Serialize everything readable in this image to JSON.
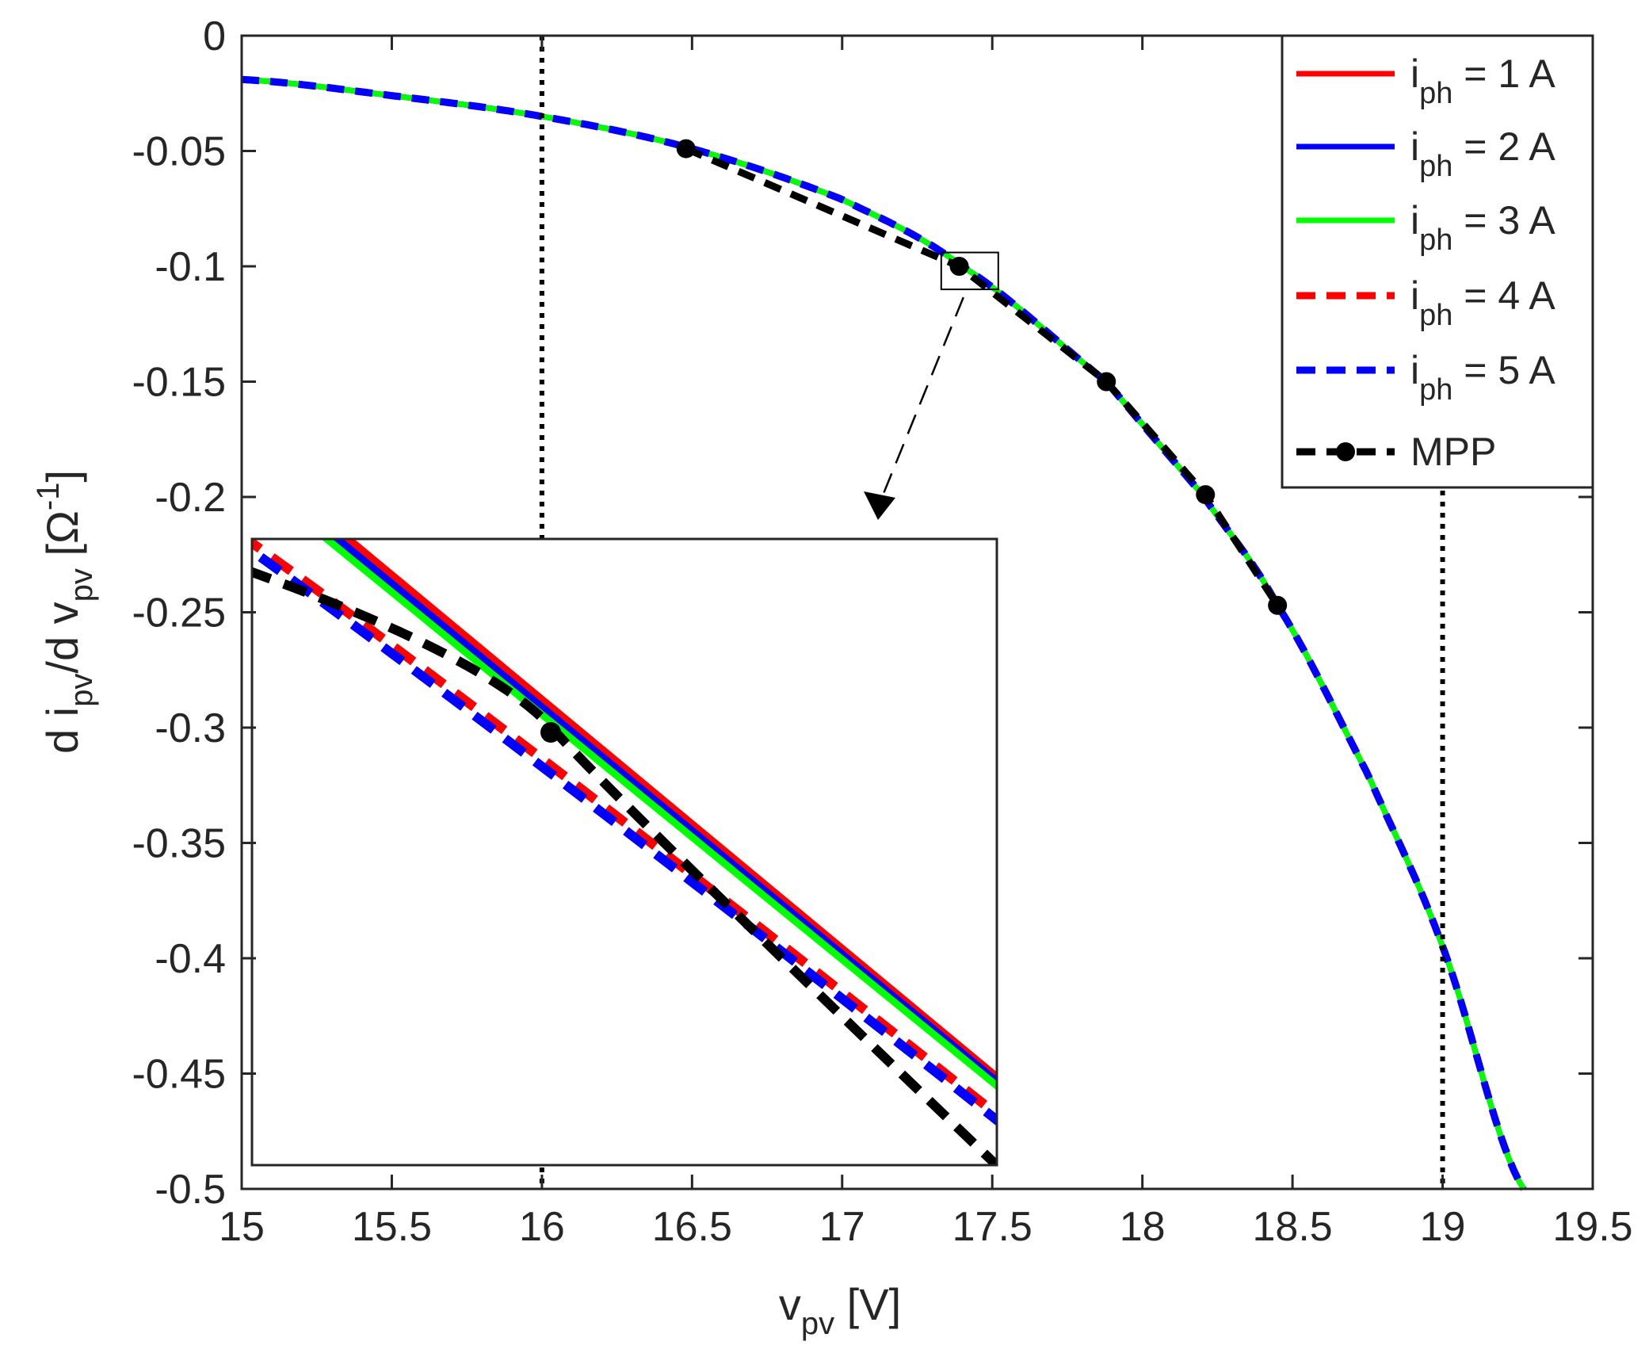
{
  "chart_data": {
    "type": "line",
    "title": "",
    "xlabel": {
      "main": "v",
      "sub": "pv",
      "unit": "[V]"
    },
    "ylabel": {
      "prefix": "d i",
      "sub1": "pv",
      "mid": "/d v",
      "sub2": "pv",
      "unit_open": "[Ω",
      "sup": "-1",
      "unit_close": "]"
    },
    "xlim": [
      15,
      19.5
    ],
    "ylim": [
      -0.5,
      0
    ],
    "x_ticks": [
      "15",
      "15.5",
      "16",
      "16.5",
      "17",
      "17.5",
      "18",
      "18.5",
      "19",
      "19.5"
    ],
    "y_ticks": [
      "0",
      "-0.05",
      "-0.1",
      "-0.15",
      "-0.2",
      "-0.25",
      "-0.3",
      "-0.35",
      "-0.4",
      "-0.45",
      "-0.5"
    ],
    "vertical_lines": [
      16,
      19
    ],
    "series": [
      {
        "name": "i_ph = 1 A",
        "iph": 1,
        "color": "#ff0000",
        "style": "solid"
      },
      {
        "name": "i_ph = 2 A",
        "iph": 2,
        "color": "#0000ff",
        "style": "solid"
      },
      {
        "name": "i_ph = 3 A",
        "iph": 3,
        "color": "#00ff00",
        "style": "solid"
      },
      {
        "name": "i_ph = 4 A",
        "iph": 4,
        "color": "#ff0000",
        "style": "dashed"
      },
      {
        "name": "i_ph = 5 A",
        "iph": 5,
        "color": "#0000ff",
        "style": "dashed"
      }
    ],
    "curve_points": {
      "x": [
        15.0,
        15.5,
        16.0,
        16.5,
        17.0,
        17.4,
        17.88,
        18.2,
        18.45,
        18.75,
        19.0,
        19.27
      ],
      "y": [
        -0.019,
        -0.026,
        -0.035,
        -0.049,
        -0.071,
        -0.1,
        -0.15,
        -0.199,
        -0.247,
        -0.32,
        -0.395,
        -0.5
      ]
    },
    "mpp": {
      "name": "MPP",
      "color": "#000000",
      "x": [
        16.48,
        17.39,
        17.88,
        18.21,
        18.45
      ],
      "y": [
        -0.049,
        -0.1,
        -0.15,
        -0.199,
        -0.247
      ]
    },
    "inset": {
      "region_center": [
        17.4,
        -0.1
      ],
      "region_x": [
        17.33,
        17.52
      ],
      "region_y": [
        -0.094,
        -0.11
      ]
    },
    "legend": {
      "position": "top-right",
      "entries": [
        {
          "label_main": "i",
          "label_sub": "ph",
          "label_rest": " = 1 A"
        },
        {
          "label_main": "i",
          "label_sub": "ph",
          "label_rest": " = 2 A"
        },
        {
          "label_main": "i",
          "label_sub": "ph",
          "label_rest": " = 3 A"
        },
        {
          "label_main": "i",
          "label_sub": "ph",
          "label_rest": " = 4 A"
        },
        {
          "label_main": "i",
          "label_sub": "ph",
          "label_rest": " = 5 A"
        },
        {
          "label_main": "MPP",
          "label_sub": "",
          "label_rest": ""
        }
      ]
    }
  }
}
